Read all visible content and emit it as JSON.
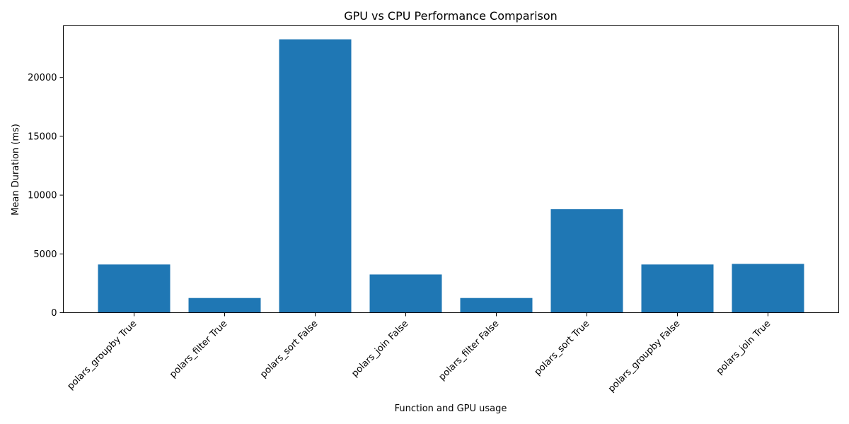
{
  "chart_data": {
    "type": "bar",
    "title": "GPU vs CPU Performance Comparison",
    "xlabel": "Function and GPU usage",
    "ylabel": "Mean Duration (ms)",
    "categories": [
      "polars_groupby True",
      "polars_filter True",
      "polars_sort False",
      "polars_join False",
      "polars_filter False",
      "polars_sort True",
      "polars_groupby False",
      "polars_join True"
    ],
    "values": [
      4100,
      1250,
      23250,
      3250,
      1250,
      8800,
      4100,
      4150
    ],
    "ylim": [
      0,
      24400
    ],
    "yticks": [
      0,
      5000,
      10000,
      15000,
      20000
    ],
    "bar_color": "#1f77b4",
    "grid": false
  }
}
